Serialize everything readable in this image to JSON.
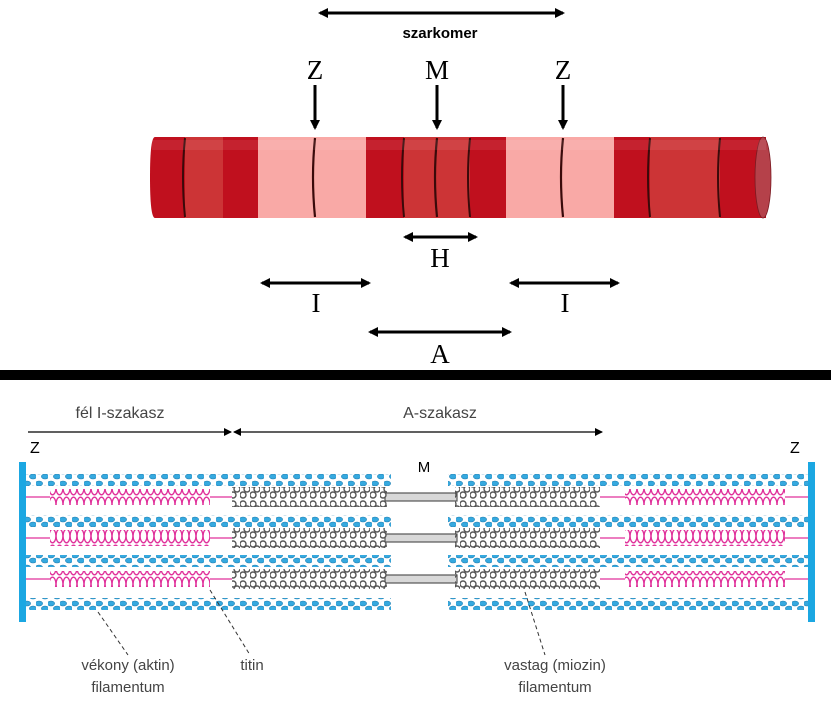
{
  "top": {
    "sarcomere_label": "szarkomer",
    "z_left": "Z",
    "m_label": "M",
    "z_right": "Z",
    "h_label": "H",
    "i_left": "I",
    "i_right": "I",
    "a_label": "A",
    "colors": {
      "dark_band": "#c0101e",
      "mid_band": "#cc3436",
      "light_band": "#f9a9a6",
      "line": "#3a0a0a"
    }
  },
  "bottom": {
    "half_i_band": "fél I-szakasz",
    "a_band": "A-szakasz",
    "z_left": "Z",
    "z_right": "Z",
    "m_label": "M",
    "actin_line1": "vékony (aktin)",
    "actin_line2": "filamentum",
    "titin": "titin",
    "myosin_line1": "vastag (miozin)",
    "myosin_line2": "filamentum",
    "colors": {
      "z_disc": "#1ba7e2",
      "actin": "#36a9df",
      "titin": "#e0309a",
      "myosin": "#777777"
    }
  }
}
